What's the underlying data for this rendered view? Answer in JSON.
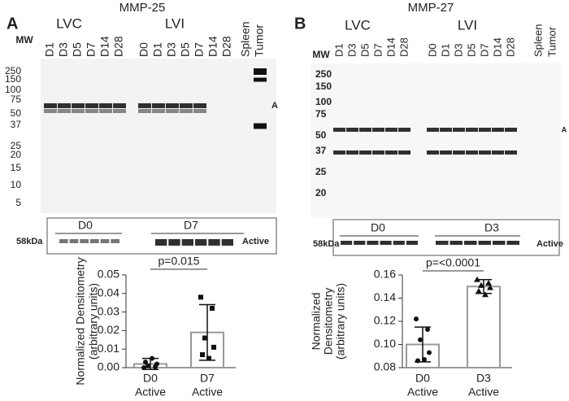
{
  "panels": [
    {
      "letter": "A",
      "title": "MMP-25",
      "mw_label": "MW",
      "groups": [
        {
          "label": "LVC",
          "lanes": [
            "D1",
            "D3",
            "D5",
            "D7",
            "D14",
            "D28"
          ]
        },
        {
          "label": "LVI",
          "lanes": [
            "D0",
            "D1",
            "D3",
            "D5",
            "D7",
            "D14",
            "D28"
          ]
        }
      ],
      "extra_lanes": [
        "Spleen",
        "Tumor"
      ],
      "mw_markers": [
        "250",
        "150",
        "100",
        "75",
        "50",
        "37",
        "25",
        "20",
        "15",
        "10",
        "5"
      ],
      "band_marker": "A",
      "active_blot": {
        "size_label": "58kDa",
        "active_label": "Active",
        "groups": [
          "D0",
          "D7"
        ]
      }
    },
    {
      "letter": "B",
      "title": "MMP-27",
      "mw_label": "MW",
      "groups": [
        {
          "label": "LVC",
          "lanes": [
            "D1",
            "D3",
            "D5",
            "D7",
            "D14",
            "D28"
          ]
        },
        {
          "label": "LVI",
          "lanes": [
            "D0",
            "D1",
            "D3",
            "D5",
            "D7",
            "D14",
            "D28"
          ]
        }
      ],
      "extra_lanes": [
        "Spleen",
        "Tumor"
      ],
      "mw_markers": [
        "250",
        "150",
        "100",
        "75",
        "50",
        "37",
        "25",
        "20"
      ],
      "band_marker": "A",
      "active_blot": {
        "size_label": "58kDa",
        "active_label": "Active",
        "groups": [
          "D0",
          "D3"
        ]
      }
    }
  ],
  "chart_data": [
    {
      "type": "bar",
      "ylabel": [
        "Normalized Densitometry",
        "(arbitrary units)"
      ],
      "annotation": "p=0.015",
      "categories": [
        [
          "D0",
          "Active"
        ],
        [
          "D7",
          "Active"
        ]
      ],
      "values": [
        0.002,
        0.019
      ],
      "errors": [
        0.003,
        0.015
      ],
      "points": [
        [
          0.0,
          0.0005,
          0.001,
          0.002,
          0.003,
          0.005
        ],
        [
          0.038,
          0.032,
          0.016,
          0.011,
          0.007,
          0.005
        ]
      ],
      "markers": [
        "circle",
        "square"
      ],
      "color": "#ffffff",
      "edge_colors": [
        "#999999",
        "#999999"
      ],
      "ylim": [
        0,
        0.05
      ],
      "yticks": [
        {
          "value": 0,
          "label": "0.00"
        },
        {
          "value": 0.01,
          "label": "0.01"
        },
        {
          "value": 0.02,
          "label": "0.02"
        },
        {
          "value": 0.03,
          "label": "0.03"
        },
        {
          "value": 0.04,
          "label": "0.04"
        },
        {
          "value": 0.05,
          "label": "0.05"
        }
      ]
    },
    {
      "type": "bar",
      "ylabel": [
        "Normalized",
        "Densitometry",
        "(arbitrary units)"
      ],
      "annotation": "p=<0.0001",
      "categories": [
        [
          "D0",
          "Active"
        ],
        [
          "D3",
          "Active"
        ]
      ],
      "values": [
        0.1,
        0.15
      ],
      "errors": [
        0.015,
        0.006
      ],
      "points": [
        [
          0.122,
          0.113,
          0.104,
          0.093,
          0.086,
          0.087
        ],
        [
          0.156,
          0.153,
          0.151,
          0.149,
          0.146,
          0.143
        ]
      ],
      "markers": [
        "circle",
        "triangle"
      ],
      "color": "#ffffff",
      "edge_colors": [
        "#999999",
        "#999999"
      ],
      "ylim": [
        0.08,
        0.16
      ],
      "yticks": [
        {
          "value": 0.08,
          "label": "0.08"
        },
        {
          "value": 0.1,
          "label": "0.10"
        },
        {
          "value": 0.12,
          "label": "0.12"
        },
        {
          "value": 0.14,
          "label": "0.14"
        },
        {
          "value": 0.16,
          "label": "0.16"
        }
      ]
    }
  ]
}
